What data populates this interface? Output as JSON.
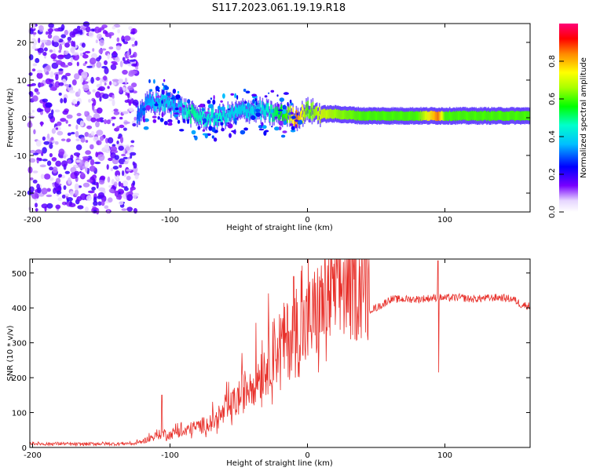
{
  "title": "S117.2023.061.19.19.R18",
  "chart_data": [
    {
      "type": "heatmap",
      "xlabel": "Height of straight line (km)",
      "ylabel": "Frequency (Hz)",
      "xlim": [
        -202,
        162
      ],
      "ylim": [
        -25,
        25
      ],
      "xticks": [
        -200,
        -100,
        0,
        100
      ],
      "yticks": [
        -20,
        -10,
        0,
        10,
        20
      ],
      "colorbar": {
        "label": "Normalized spectral amplitude",
        "range": [
          0,
          1
        ],
        "ticks": [
          "0.0",
          "0.2",
          "0.4",
          "0.6",
          "0.8"
        ],
        "tick_values": [
          0,
          0.2,
          0.4,
          0.6,
          0.8
        ],
        "colors": [
          "#ffffff",
          "#7700ff",
          "#0000ff",
          "#00ffff",
          "#00ff00",
          "#ffff00",
          "#ff0000",
          "#ff0077"
        ]
      },
      "noise_region_x": [
        -202,
        -124
      ],
      "signal_trace": {
        "x": [
          -124,
          -115,
          -105,
          -95,
          -85,
          -75,
          -65,
          -55,
          -45,
          -35,
          -25,
          -15,
          -8,
          0,
          10,
          20,
          40,
          60,
          80,
          95,
          100,
          120,
          140,
          162
        ],
        "freq": [
          1,
          4,
          4,
          3,
          1,
          0,
          0,
          1,
          2,
          2,
          1,
          1,
          0,
          2,
          1,
          1,
          0.5,
          0.5,
          0.5,
          0.5,
          0.5,
          0.5,
          0.5,
          0.5
        ],
        "amplitude": [
          0.3,
          0.35,
          0.4,
          0.35,
          0.5,
          0.45,
          0.45,
          0.4,
          0.4,
          0.4,
          0.5,
          0.6,
          0.85,
          0.6,
          0.7,
          0.65,
          0.6,
          0.6,
          0.6,
          0.85,
          0.6,
          0.6,
          0.6,
          0.6
        ]
      }
    },
    {
      "type": "line",
      "xlabel": "Height of straight line (km)",
      "ylabel": "SNR (10 * v/v)",
      "xlim": [
        -202,
        162
      ],
      "ylim": [
        0,
        540
      ],
      "xticks": [
        -200,
        -100,
        0,
        100
      ],
      "yticks": [
        0,
        100,
        200,
        300,
        400,
        500
      ],
      "color": "#e8302a",
      "series": [
        {
          "x": [
            -202,
            -190,
            -180,
            -170,
            -160,
            -150,
            -140,
            -130,
            -125,
            -120,
            -115,
            -110,
            -105,
            -100,
            -95,
            -90,
            -85,
            -80,
            -75,
            -70,
            -65,
            -60,
            -55,
            -50,
            -45,
            -40,
            -35,
            -30,
            -25,
            -20,
            -15,
            -10,
            -5,
            0,
            5,
            10,
            15,
            20,
            25,
            30,
            35,
            40,
            45,
            50,
            55,
            60,
            70,
            80,
            90,
            95,
            100,
            110,
            120,
            130,
            140,
            150,
            155,
            162
          ],
          "y": [
            12,
            10,
            11,
            9,
            10,
            11,
            10,
            12,
            10,
            15,
            22,
            28,
            35,
            30,
            40,
            35,
            45,
            50,
            55,
            60,
            70,
            85,
            100,
            120,
            140,
            160,
            180,
            200,
            230,
            250,
            260,
            270,
            275,
            300,
            320,
            340,
            365,
            385,
            400,
            405,
            410,
            415,
            395,
            400,
            410,
            425,
            425,
            425,
            428,
            430,
            428,
            430,
            425,
            428,
            430,
            425,
            410,
            405
          ]
        }
      ]
    }
  ]
}
